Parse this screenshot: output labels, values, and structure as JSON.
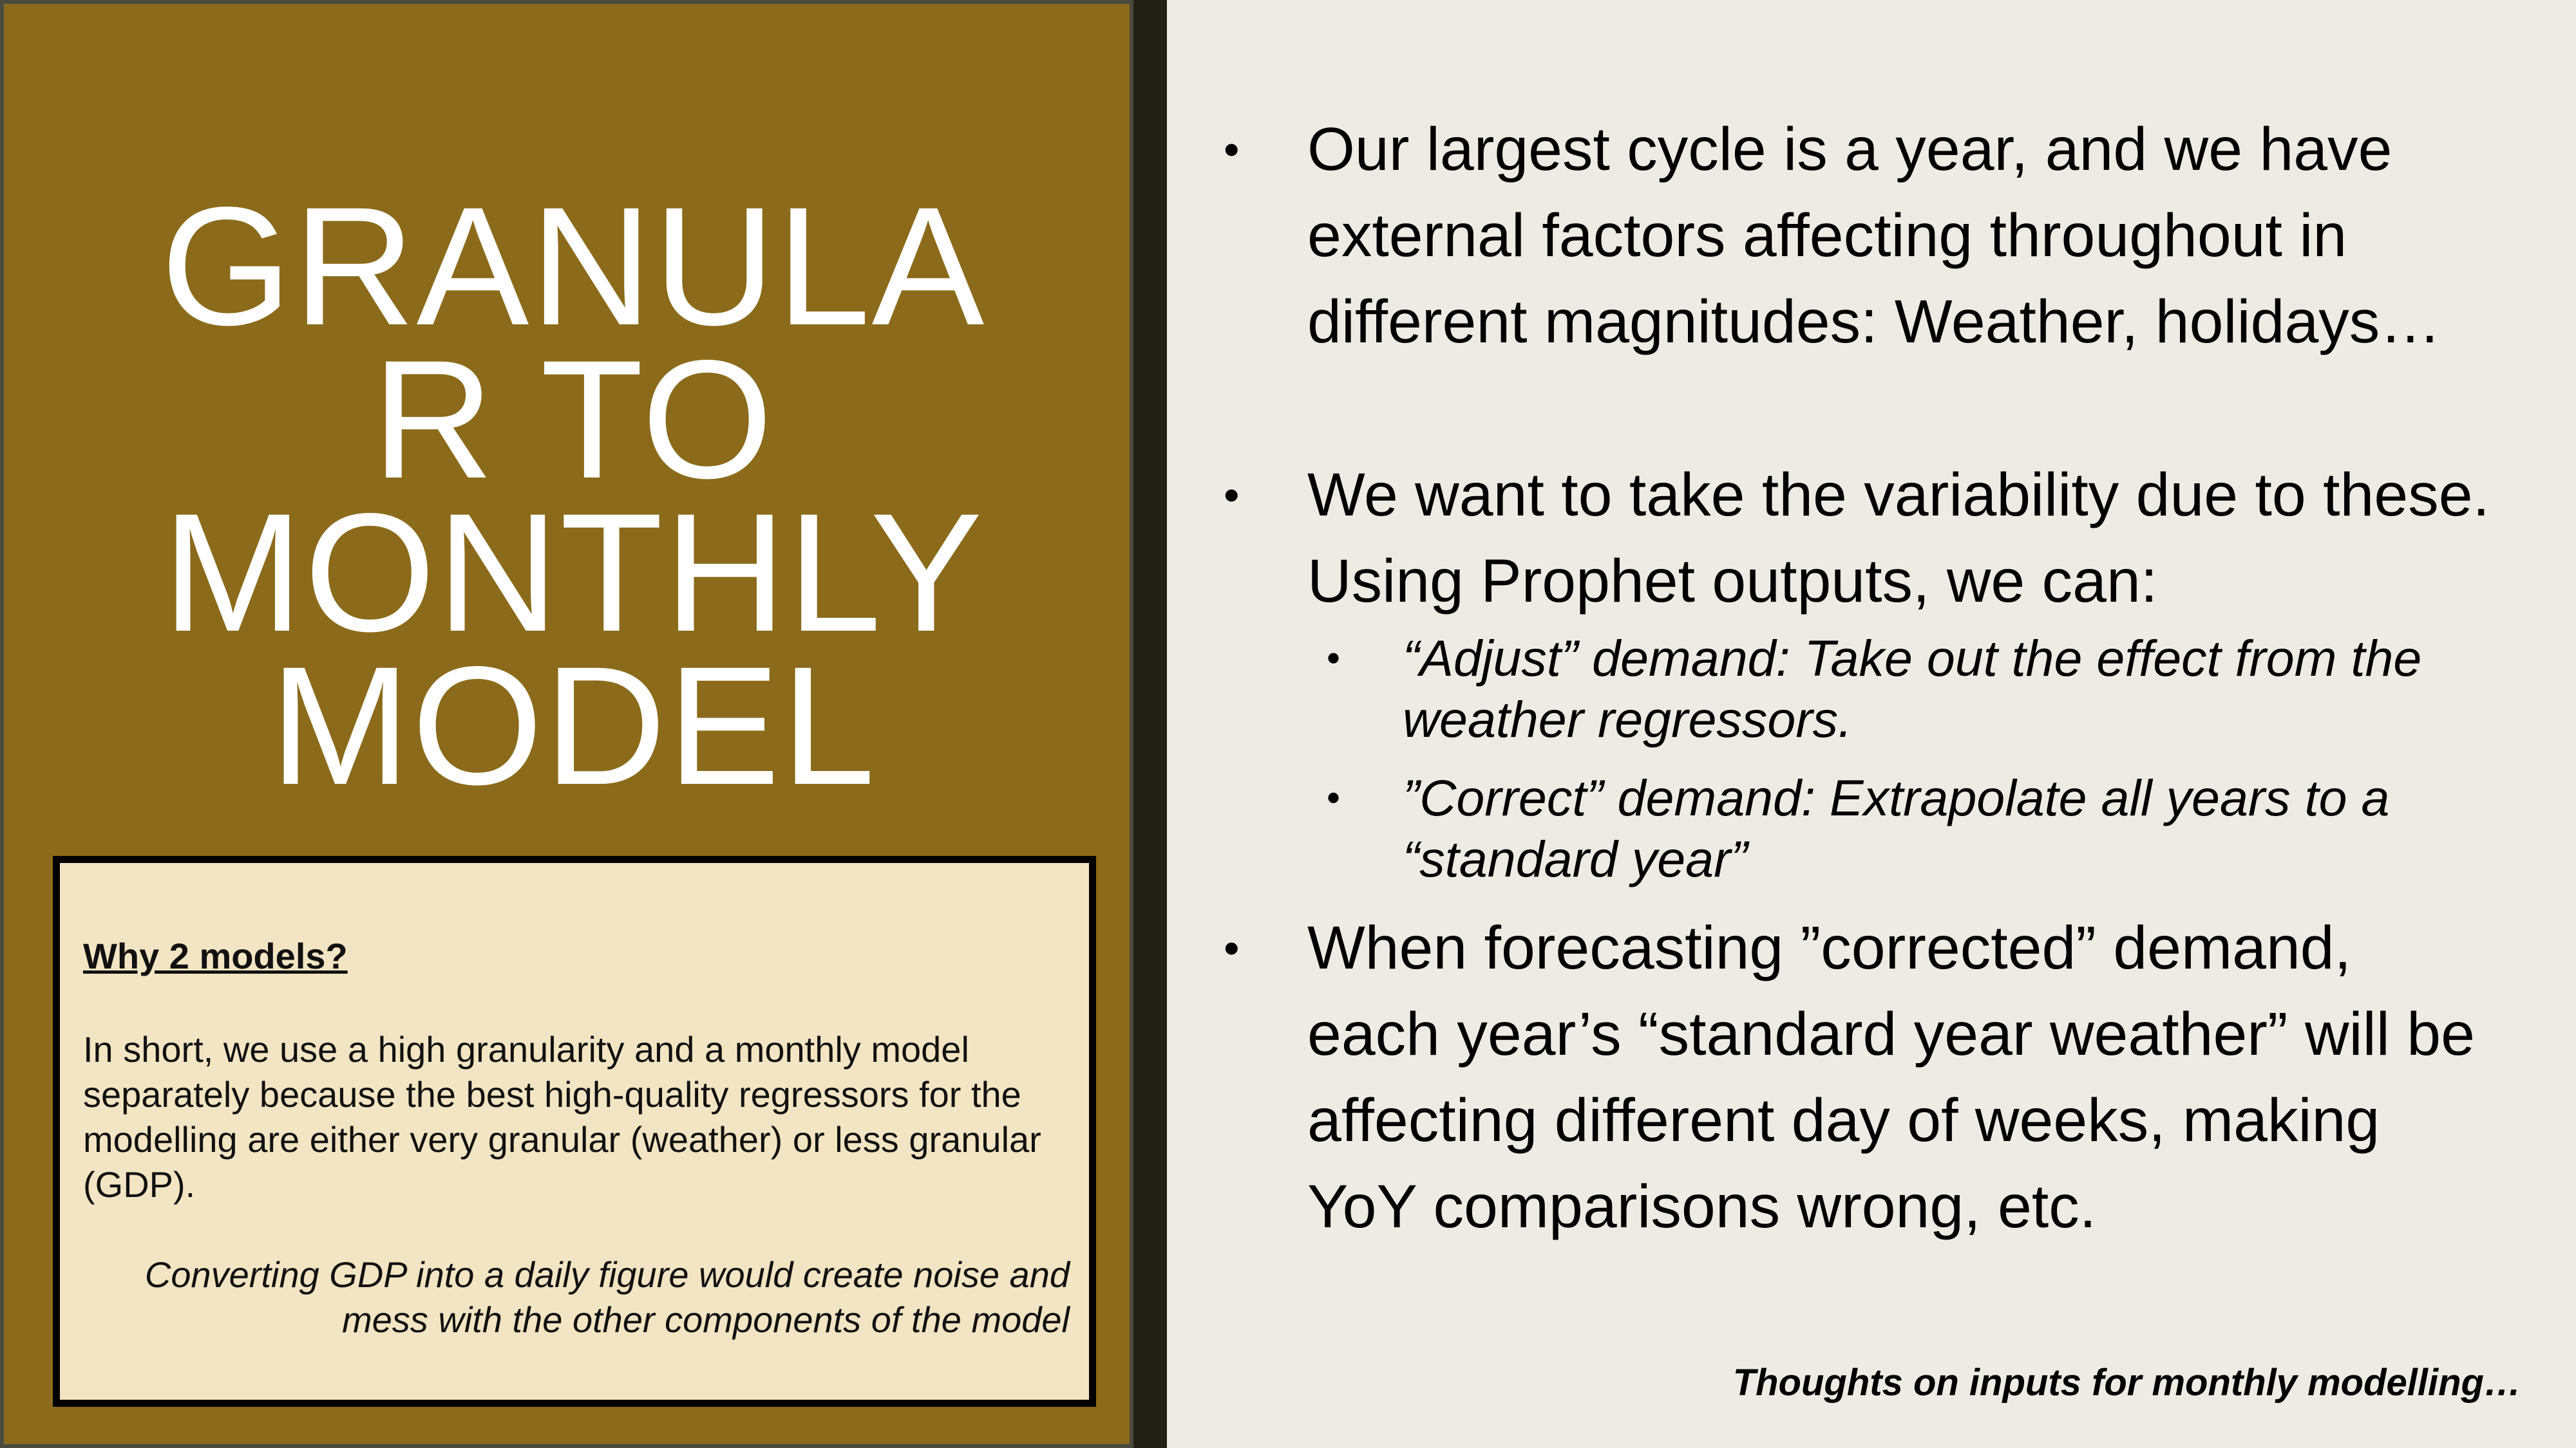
{
  "title_lines": [
    "GRANULA",
    "R TO",
    "MONTHLY",
    "MODEL"
  ],
  "callout": {
    "heading": "Why 2 models?",
    "body": "In short, we use a high granularity and a monthly model separately because the best high-quality regressors for the modelling are either very granular (weather) or less granular (GDP).",
    "note": "Converting GDP into a daily figure would create noise and mess with the other components of the model"
  },
  "bullets": {
    "b1": "Our largest cycle is a year, and we have external factors affecting throughout in different magnitudes: Weather, holidays…",
    "b2": "We want to take the variability due to these. Using Prophet outputs, we can:",
    "sub1": "“Adjust” demand: Take out the effect from the weather regressors.",
    "sub2": "”Correct” demand: Extrapolate all years to a “standard year”",
    "b3": "When forecasting ”corrected” demand, each year’s “standard year weather” will be affecting different day of weeks, making YoY comparisons wrong, etc."
  },
  "footer": "Thoughts on inputs for monthly modelling…",
  "bullet_glyph": "•",
  "colors": {
    "left_panel": "#8b6b1b",
    "divider": "#202114",
    "background": "#edebe4",
    "callout_bg": "#f3e5c3"
  }
}
